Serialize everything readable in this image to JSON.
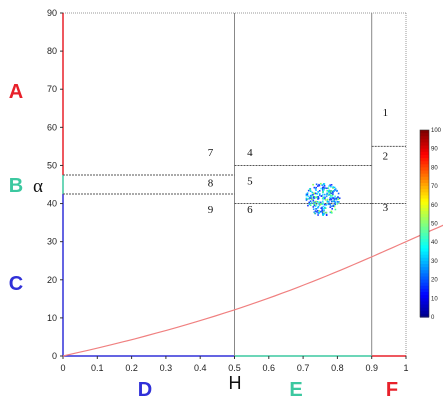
{
  "chart_data": {
    "type": "scatter",
    "title": "",
    "xlabel": "H",
    "ylabel": "α",
    "xlim": [
      0,
      1
    ],
    "ylim": [
      0,
      90
    ],
    "x_ticks": [
      "0",
      "0.1",
      "0.2",
      "0.3",
      "0.4",
      "0.5",
      "0.6",
      "0.7",
      "0.8",
      "0.9",
      "1"
    ],
    "y_ticks": [
      "0",
      "10",
      "20",
      "30",
      "40",
      "50",
      "60",
      "70",
      "80",
      "90"
    ],
    "grid": false,
    "boundary_curve_color": "#f08080",
    "divider_lines": {
      "vertical_H": [
        0.5,
        0.9
      ],
      "horizontal_segments": [
        {
          "alpha": 47.5,
          "H_from": 0,
          "H_to": 0.5
        },
        {
          "alpha": 42.5,
          "H_from": 0,
          "H_to": 0.5
        },
        {
          "alpha": 50,
          "H_from": 0.5,
          "H_to": 0.9
        },
        {
          "alpha": 40,
          "H_from": 0.5,
          "H_to": 0.9
        },
        {
          "alpha": 55,
          "H_from": 0.9,
          "H_to": 1
        },
        {
          "alpha": 40,
          "H_from": 0.9,
          "H_to": 1
        }
      ]
    },
    "zone_labels": [
      {
        "text": "1",
        "H": 0.94,
        "alpha": 63
      },
      {
        "text": "2",
        "H": 0.94,
        "alpha": 51.5
      },
      {
        "text": "3",
        "H": 0.94,
        "alpha": 38
      },
      {
        "text": "4",
        "H": 0.545,
        "alpha": 52.5
      },
      {
        "text": "5",
        "H": 0.545,
        "alpha": 45
      },
      {
        "text": "6",
        "H": 0.545,
        "alpha": 37.5
      },
      {
        "text": "7",
        "H": 0.43,
        "alpha": 52.5
      },
      {
        "text": "8",
        "H": 0.43,
        "alpha": 44.5
      },
      {
        "text": "9",
        "H": 0.43,
        "alpha": 37.5
      }
    ],
    "scatter_cluster": {
      "center_H": 0.755,
      "center_alpha": 41.5,
      "spread_H": 0.05,
      "spread_alpha": 4.5
    },
    "colorbar": {
      "min": 0,
      "max": 100,
      "ticks": [
        "100",
        "90",
        "80",
        "70",
        "60",
        "50",
        "40",
        "30",
        "20",
        "10",
        "0"
      ]
    }
  },
  "region_labels": {
    "A": {
      "text": "A",
      "color": "#e8202a"
    },
    "B": {
      "text": "B",
      "color": "#3cc8a0"
    },
    "C": {
      "text": "C",
      "color": "#3030d8"
    },
    "D": {
      "text": "D",
      "color": "#3030d8"
    },
    "E": {
      "text": "E",
      "color": "#3cc8a0"
    },
    "F": {
      "text": "F",
      "color": "#e8202a"
    }
  }
}
